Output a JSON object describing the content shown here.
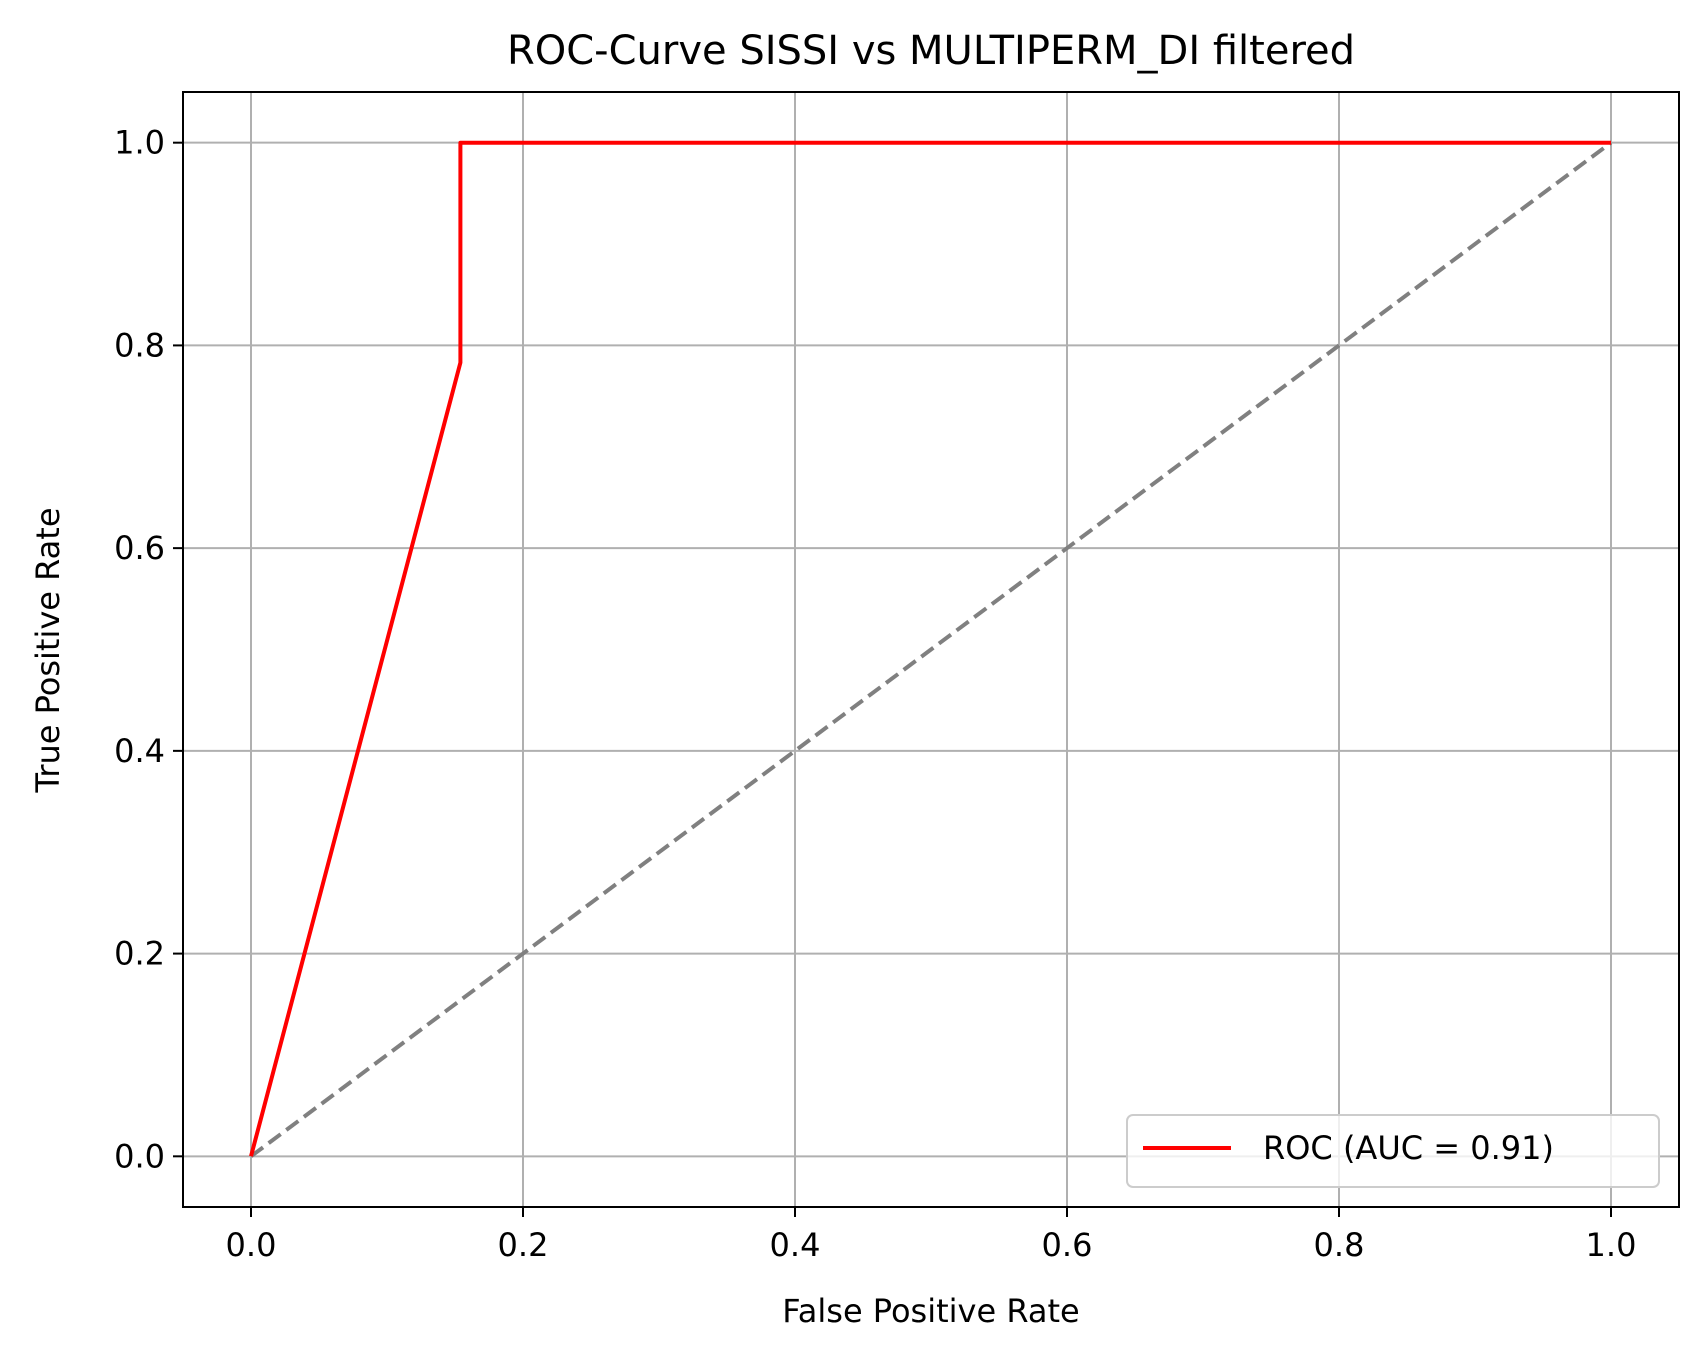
{
  "chart_data": {
    "type": "line",
    "title": "ROC-Curve SISSI vs MULTIPERM_DI filtered",
    "xlabel": "False Positive Rate",
    "ylabel": "True Positive Rate",
    "xlim": [
      -0.05,
      1.05
    ],
    "ylim": [
      -0.05,
      1.05
    ],
    "xticks": [
      0.0,
      0.2,
      0.4,
      0.6,
      0.8,
      1.0
    ],
    "yticks": [
      0.0,
      0.2,
      0.4,
      0.6,
      0.8,
      1.0
    ],
    "xtick_labels": [
      "0.0",
      "0.2",
      "0.4",
      "0.6",
      "0.8",
      "1.0"
    ],
    "ytick_labels": [
      "0.0",
      "0.2",
      "0.4",
      "0.6",
      "0.8",
      "1.0"
    ],
    "grid": true,
    "legend_position": "lower-right",
    "series": [
      {
        "name": "ROC (AUC = 0.91)",
        "color": "#ff0000",
        "style": "solid",
        "x": [
          0.0,
          0.154,
          0.154,
          1.0
        ],
        "y": [
          0.0,
          0.783,
          1.0,
          1.0
        ]
      },
      {
        "color": "#808080",
        "style": "dashed",
        "x": [
          0.0,
          1.0
        ],
        "y": [
          0.0,
          1.0
        ]
      }
    ]
  }
}
